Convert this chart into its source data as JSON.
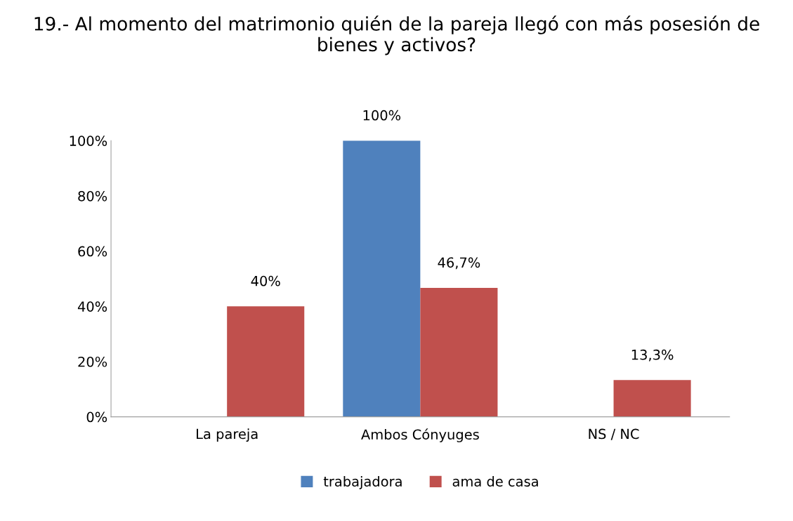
{
  "chart_data": {
    "type": "bar",
    "title": "19.- Al momento del matrimonio quién de la pareja llegó con más posesión de bienes y activos?",
    "categories": [
      "La pareja",
      "Ambos Cónyuges",
      "NS / NC"
    ],
    "series": [
      {
        "name": "trabajadora",
        "color": "#4f81bd",
        "values": [
          0,
          100,
          0
        ],
        "value_labels": [
          null,
          "100%",
          null
        ]
      },
      {
        "name": "ama de casa",
        "color": "#c0504d",
        "values": [
          40,
          46.7,
          13.3
        ],
        "value_labels": [
          "40%",
          "46,7%",
          "13,3%"
        ]
      }
    ],
    "ylim": [
      0,
      100
    ],
    "yticks": [
      {
        "value": 0,
        "label": "0%"
      },
      {
        "value": 20,
        "label": "20%"
      },
      {
        "value": 40,
        "label": "40%"
      },
      {
        "value": 60,
        "label": "60%"
      },
      {
        "value": 80,
        "label": "80%"
      },
      {
        "value": 100,
        "label": "100%"
      }
    ],
    "grid": false,
    "legend": "bottom"
  }
}
